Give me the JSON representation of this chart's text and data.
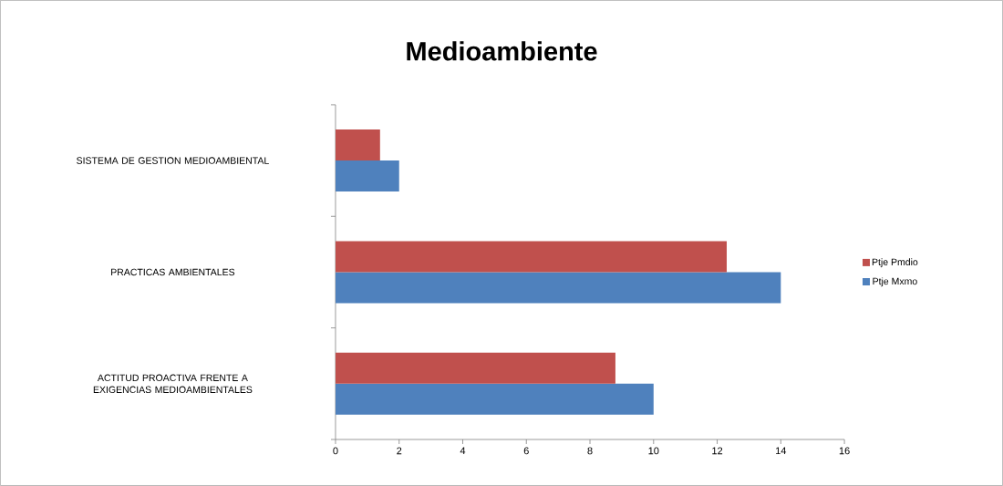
{
  "chart_data": {
    "type": "bar",
    "orientation": "horizontal",
    "title": "Medioambiente",
    "categories": [
      "SISTEMA DE GESTION MEDIOAMBIENTAL",
      "PRACTICAS AMBIENTALES",
      "ACTITUD PROACTIVA FRENTE A EXIGENCIAS MEDIOAMBIENTALES"
    ],
    "series": [
      {
        "name": "Ptje Mxmo",
        "color": "#4f81bd",
        "values": [
          2,
          14,
          10
        ]
      },
      {
        "name": "Ptje Pmdio",
        "color": "#c0504d",
        "values": [
          1.4,
          12.3,
          8.8
        ]
      }
    ],
    "xlim": [
      0,
      16
    ],
    "xticks": [
      0,
      2,
      4,
      6,
      8,
      10,
      12,
      14,
      16
    ],
    "grid": false,
    "legend": "right"
  }
}
